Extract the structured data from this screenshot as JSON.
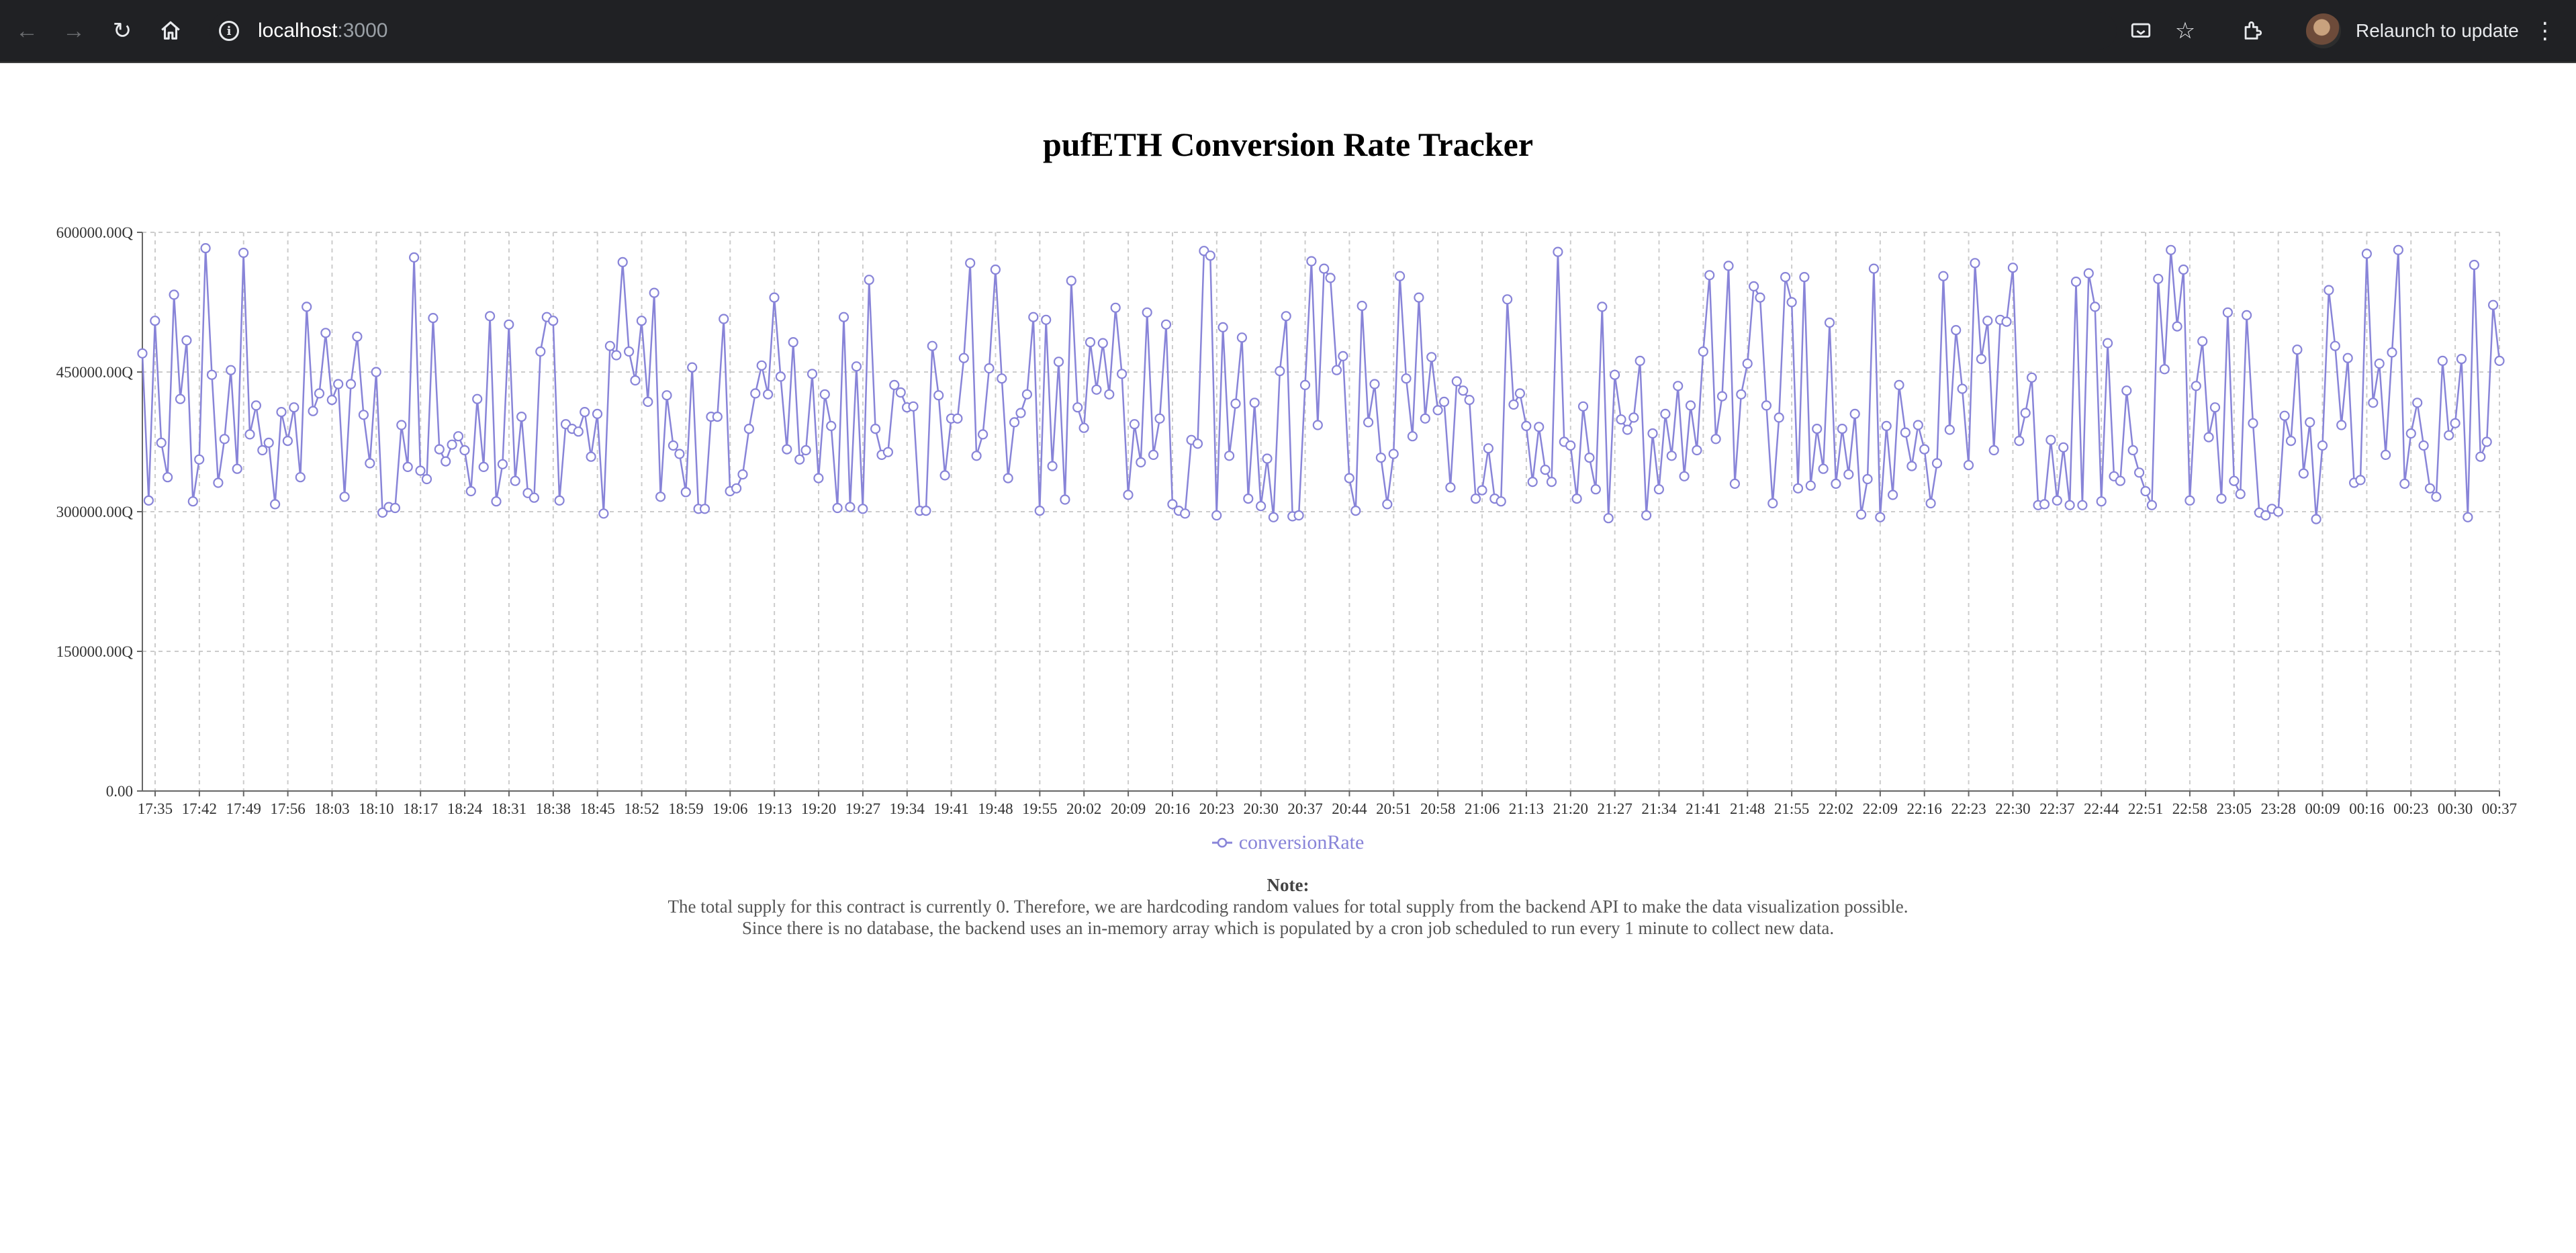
{
  "browser": {
    "url_host": "localhost",
    "url_port": ":3000",
    "relaunch_label": "Relaunch to update",
    "icons": [
      "back-arrow-icon",
      "forward-arrow-icon",
      "reload-icon",
      "home-icon",
      "info-icon",
      "cast-icon",
      "star-icon",
      "extensions-icon",
      "avatar",
      "kebab-menu-icon"
    ]
  },
  "page": {
    "title": "pufETH Conversion Rate Tracker"
  },
  "legend": {
    "label": "conversionRate"
  },
  "note": {
    "title": "Note:",
    "line1": "The total supply for this contract is currently 0. Therefore, we are hardcoding random values for total supply from the backend API to make the data visualization possible.",
    "line2": "Since there is no database, the backend uses an in-memory array which is populated by a cron job scheduled to run every 1 minute to collect new data."
  },
  "chart_data": {
    "type": "line",
    "color": "#8884d8",
    "grid": true,
    "legend_position": "bottom",
    "y_ticks": [
      "600000.00Q",
      "450000.00Q",
      "300000.00Q",
      "150000.00Q",
      "0.00"
    ],
    "ylim": [
      0,
      600000
    ],
    "x_ticks": [
      "17:35",
      "17:42",
      "17:49",
      "17:56",
      "18:03",
      "18:10",
      "18:17",
      "18:24",
      "18:31",
      "18:38",
      "18:45",
      "18:52",
      "18:59",
      "19:06",
      "19:13",
      "19:20",
      "19:27",
      "19:34",
      "19:41",
      "19:48",
      "19:55",
      "20:02",
      "20:09",
      "20:16",
      "20:23",
      "20:30",
      "20:37",
      "20:44",
      "20:51",
      "20:58",
      "21:06",
      "21:13",
      "21:20",
      "21:27",
      "21:34",
      "21:41",
      "21:48",
      "21:55",
      "22:02",
      "22:09",
      "22:16",
      "22:23",
      "22:30",
      "22:37",
      "22:44",
      "22:51",
      "22:58",
      "23:05",
      "23:28",
      "00:09",
      "00:16",
      "00:23",
      "00:30",
      "00:37"
    ],
    "series": [
      {
        "name": "conversionRate",
        "values": [
          470000,
          312000,
          505000,
          374000,
          337000,
          533000,
          421000,
          484000,
          311000,
          356000,
          583000,
          447000,
          331000,
          378000,
          452000,
          346000,
          578000,
          383000,
          414000,
          366000,
          374000,
          308000,
          407000,
          376000,
          412000,
          337000,
          520000,
          408000,
          427000,
          492000,
          420000,
          437000,
          316000,
          437000,
          488000,
          404000,
          352000,
          450000,
          299000,
          305000,
          304000,
          393000,
          348000,
          573000,
          344000,
          335000,
          508000,
          367000,
          354000,
          372000,
          381000,
          366000,
          322000,
          421000,
          348000,
          510000,
          311000,
          351000,
          501000,
          333000,
          402000,
          320000,
          315000,
          472000,
          509000,
          505000,
          312000,
          394000,
          389000,
          386000,
          407000,
          359000,
          405000,
          298000,
          478000,
          468000,
          568000,
          472000,
          441000,
          505000,
          418000,
          535000,
          316000,
          425000,
          371000,
          362000,
          321000,
          455000,
          303000,
          303000,
          402000,
          402000,
          507000,
          322000,
          325000,
          340000,
          389000,
          427000,
          457000,
          426000,
          530000,
          445000,
          367000,
          482000,
          356000,
          366000,
          448000,
          336000,
          426000,
          392000,
          304000,
          509000,
          305000,
          456000,
          303000,
          549000,
          389000,
          361000,
          364000,
          436000,
          428000,
          412000,
          413000,
          301000,
          301000,
          478000,
          425000,
          339000,
          400000,
          400000,
          465000,
          567000,
          360000,
          383000,
          454000,
          560000,
          443000,
          336000,
          396000,
          406000,
          426000,
          509000,
          301000,
          506000,
          349000,
          461000,
          313000,
          548000,
          412000,
          390000,
          482000,
          431000,
          481000,
          426000,
          519000,
          448000,
          318000,
          394000,
          353000,
          514000,
          361000,
          400000,
          501000,
          308000,
          301000,
          298000,
          377000,
          373000,
          580000,
          575000,
          296000,
          498000,
          360000,
          416000,
          487000,
          314000,
          417000,
          306000,
          357000,
          294000,
          451000,
          510000,
          295000,
          296000,
          436000,
          569000,
          393000,
          561000,
          551000,
          452000,
          467000,
          336000,
          301000,
          521000,
          396000,
          437000,
          358000,
          308000,
          362000,
          553000,
          443000,
          381000,
          530000,
          400000,
          466000,
          409000,
          418000,
          326000,
          440000,
          430000,
          420000,
          314000,
          323000,
          368000,
          314000,
          311000,
          528000,
          415000,
          427000,
          392000,
          332000,
          391000,
          345000,
          332000,
          579000,
          375000,
          371000,
          314000,
          413000,
          358000,
          324000,
          520000,
          293000,
          447000,
          399000,
          388000,
          401000,
          462000,
          296000,
          384000,
          324000,
          405000,
          360000,
          435000,
          338000,
          414000,
          366000,
          472000,
          554000,
          378000,
          424000,
          564000,
          330000,
          426000,
          459000,
          542000,
          530000,
          414000,
          309000,
          401000,
          552000,
          525000,
          325000,
          552000,
          328000,
          389000,
          346000,
          503000,
          330000,
          389000,
          340000,
          405000,
          297000,
          335000,
          561000,
          294000,
          392000,
          318000,
          436000,
          385000,
          349000,
          393000,
          367000,
          309000,
          352000,
          553000,
          388000,
          495000,
          432000,
          350000,
          567000,
          464000,
          505000,
          366000,
          506000,
          504000,
          562000,
          376000,
          406000,
          444000,
          307000,
          308000,
          377000,
          312000,
          369000,
          307000,
          547000,
          307000,
          556000,
          520000,
          311000,
          481000,
          338000,
          333000,
          430000,
          366000,
          342000,
          322000,
          307000,
          550000,
          453000,
          581000,
          499000,
          560000,
          312000,
          435000,
          483000,
          380000,
          412000,
          314000,
          514000,
          333000,
          319000,
          511000,
          395000,
          299000,
          296000,
          303000,
          300000,
          403000,
          376000,
          474000,
          341000,
          396000,
          292000,
          371000,
          538000,
          478000,
          393000,
          465000,
          331000,
          334000,
          577000,
          417000,
          459000,
          361000,
          471000,
          581000,
          330000,
          384000,
          417000,
          371000,
          325000,
          316000,
          462000,
          382000,
          395000,
          464000,
          294000,
          565000,
          359000,
          375000,
          522000,
          462000
        ]
      }
    ]
  }
}
